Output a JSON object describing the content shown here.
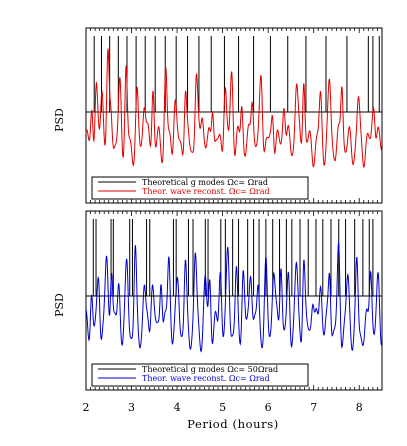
{
  "chart_data": {
    "type": "line",
    "xlabel": "Period (hours)",
    "xlim": [
      2.0,
      8.5
    ],
    "xticks": [
      "2",
      "3",
      "4",
      "5",
      "6",
      "7",
      "8"
    ],
    "panels": [
      {
        "ylabel": "PSD",
        "mode_color": "#000000",
        "wave_color": "#e00000",
        "legend": [
          {
            "text": "Theoretical g modes Ωc= Ωrad",
            "color": "#000000"
          },
          {
            "text": "Theor. wave reconst. Ωc= Ωrad",
            "color": "#e00000"
          }
        ],
        "modes": [
          2.18,
          2.34,
          2.52,
          2.71,
          2.9,
          3.1,
          3.3,
          3.52,
          3.74,
          3.98,
          4.23,
          4.48,
          4.75,
          5.04,
          5.35,
          5.68,
          6.05,
          6.43,
          6.83,
          7.27,
          7.73,
          8.2,
          8.3,
          8.44
        ],
        "wave_peaks": [
          2.13,
          2.22,
          2.35,
          2.48,
          2.55,
          2.75,
          2.88,
          3.12,
          3.28,
          3.47,
          3.75,
          3.95,
          4.18,
          4.42,
          4.55,
          4.78,
          5.05,
          5.2,
          5.42,
          5.65,
          5.85,
          6.1,
          6.35,
          6.62,
          6.78,
          7.15,
          7.35,
          7.62,
          7.98,
          8.32
        ]
      },
      {
        "ylabel": "PSD",
        "mode_color": "#000000",
        "wave_color": "#0000d0",
        "legend": [
          {
            "text": "Theoretical g modes Ωc= 50Ωrad",
            "color": "#000000"
          },
          {
            "text": "Theor. wave reconst. Ωc= Ωrad",
            "color": "#0000d0"
          }
        ],
        "modes": [
          2.16,
          2.22,
          2.55,
          2.6,
          2.96,
          3.02,
          3.33,
          3.4,
          3.92,
          3.98,
          4.25,
          4.35,
          4.62,
          4.68,
          4.96,
          5.06,
          5.22,
          5.35,
          5.55,
          5.68,
          5.8,
          5.95,
          6.1,
          6.25,
          6.4,
          6.52,
          6.7,
          6.88,
          7.05,
          7.2,
          7.38,
          7.55,
          7.7,
          7.9,
          8.08,
          8.22,
          8.3
        ],
        "wave_peaks": [
          2.12,
          2.28,
          2.45,
          2.56,
          2.72,
          2.9,
          3.08,
          3.28,
          3.45,
          3.65,
          3.82,
          4.02,
          4.18,
          4.4,
          4.62,
          4.72,
          4.95,
          5.12,
          5.3,
          5.45,
          5.62,
          5.78,
          5.95,
          6.12,
          6.28,
          6.45,
          6.62,
          6.78,
          6.98,
          7.15,
          7.35,
          7.55,
          7.75,
          7.95,
          8.25,
          8.42
        ]
      }
    ]
  }
}
